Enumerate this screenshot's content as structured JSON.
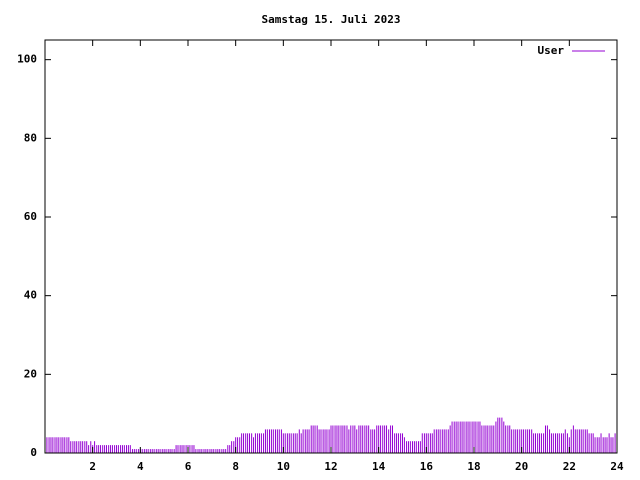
{
  "chart_data": {
    "type": "impulse",
    "title": "Samstag 15. Juli 2023",
    "xlim": [
      0,
      24
    ],
    "xticks": [
      2,
      4,
      6,
      8,
      10,
      12,
      14,
      16,
      18,
      20,
      22,
      24
    ],
    "ylim": [
      0,
      105
    ],
    "yticks": [
      0,
      20,
      40,
      60,
      80,
      100
    ],
    "legend": "top-right",
    "x": [
      0,
      0.08,
      0.17,
      0.25,
      0.33,
      0.42,
      0.5,
      0.58,
      0.67,
      0.75,
      0.83,
      0.92,
      1,
      1.08,
      1.17,
      1.25,
      1.33,
      1.42,
      1.5,
      1.58,
      1.67,
      1.75,
      1.83,
      1.92,
      2,
      2.08,
      2.17,
      2.25,
      2.33,
      2.42,
      2.5,
      2.58,
      2.67,
      2.75,
      2.83,
      2.92,
      3,
      3.08,
      3.17,
      3.25,
      3.33,
      3.42,
      3.5,
      3.58,
      3.67,
      3.75,
      3.83,
      3.92,
      4,
      4.08,
      4.17,
      4.25,
      4.33,
      4.42,
      4.5,
      4.58,
      4.67,
      4.75,
      4.83,
      4.92,
      5,
      5.08,
      5.17,
      5.25,
      5.33,
      5.42,
      5.5,
      5.58,
      5.67,
      5.75,
      5.83,
      5.92,
      6,
      6.08,
      6.17,
      6.25,
      6.33,
      6.42,
      6.5,
      6.58,
      6.67,
      6.75,
      6.83,
      6.92,
      7,
      7.08,
      7.17,
      7.25,
      7.33,
      7.42,
      7.5,
      7.58,
      7.67,
      7.75,
      7.83,
      7.92,
      8,
      8.08,
      8.17,
      8.25,
      8.33,
      8.42,
      8.5,
      8.58,
      8.67,
      8.75,
      8.83,
      8.92,
      9,
      9.08,
      9.17,
      9.25,
      9.33,
      9.42,
      9.5,
      9.58,
      9.67,
      9.75,
      9.83,
      9.92,
      10,
      10.08,
      10.17,
      10.25,
      10.33,
      10.42,
      10.5,
      10.58,
      10.67,
      10.75,
      10.83,
      10.92,
      11,
      11.08,
      11.17,
      11.25,
      11.33,
      11.42,
      11.5,
      11.58,
      11.67,
      11.75,
      11.83,
      11.92,
      12,
      12.08,
      12.17,
      12.25,
      12.33,
      12.42,
      12.5,
      12.58,
      12.67,
      12.75,
      12.83,
      12.92,
      13,
      13.08,
      13.17,
      13.25,
      13.33,
      13.42,
      13.5,
      13.58,
      13.67,
      13.75,
      13.83,
      13.92,
      14,
      14.08,
      14.17,
      14.25,
      14.33,
      14.42,
      14.5,
      14.58,
      14.67,
      14.75,
      14.83,
      14.92,
      15,
      15.08,
      15.17,
      15.25,
      15.33,
      15.42,
      15.5,
      15.58,
      15.67,
      15.75,
      15.83,
      15.92,
      16,
      16.08,
      16.17,
      16.25,
      16.33,
      16.42,
      16.5,
      16.58,
      16.67,
      16.75,
      16.83,
      16.92,
      17,
      17.08,
      17.17,
      17.25,
      17.33,
      17.42,
      17.5,
      17.58,
      17.67,
      17.75,
      17.83,
      17.92,
      18,
      18.08,
      18.17,
      18.25,
      18.33,
      18.42,
      18.5,
      18.58,
      18.67,
      18.75,
      18.83,
      18.92,
      19,
      19.08,
      19.17,
      19.25,
      19.33,
      19.42,
      19.5,
      19.58,
      19.67,
      19.75,
      19.83,
      19.92,
      20,
      20.08,
      20.17,
      20.25,
      20.33,
      20.42,
      20.5,
      20.58,
      20.67,
      20.75,
      20.83,
      20.92,
      21,
      21.08,
      21.17,
      21.25,
      21.33,
      21.42,
      21.5,
      21.58,
      21.67,
      21.75,
      21.83,
      21.92,
      22,
      22.08,
      22.17,
      22.25,
      22.33,
      22.42,
      22.5,
      22.58,
      22.67,
      22.75,
      22.83,
      22.92,
      23,
      23.08,
      23.17,
      23.25,
      23.33,
      23.42,
      23.5,
      23.58,
      23.67,
      23.75,
      23.83,
      23.92
    ],
    "series": [
      {
        "name": "User",
        "color": "#9400d3",
        "values": [
          3,
          4,
          4,
          4,
          4,
          4,
          4,
          4,
          4,
          4,
          4,
          4,
          4,
          3,
          3,
          3,
          3,
          3,
          3,
          3,
          3,
          3,
          2,
          3,
          2,
          3,
          2,
          2,
          2,
          2,
          2,
          2,
          2,
          2,
          2,
          2,
          2,
          2,
          2,
          2,
          2,
          2,
          2,
          2,
          1,
          1,
          1,
          1,
          1,
          1,
          1,
          1,
          1,
          1,
          1,
          1,
          1,
          1,
          1,
          1,
          1,
          1,
          1,
          1,
          1,
          1,
          2,
          2,
          2,
          2,
          2,
          2,
          2,
          2,
          2,
          2,
          1,
          1,
          1,
          1,
          1,
          1,
          1,
          1,
          1,
          1,
          1,
          1,
          1,
          1,
          1,
          1,
          2,
          2,
          3,
          3,
          4,
          4,
          4,
          5,
          5,
          5,
          5,
          5,
          5,
          4,
          5,
          5,
          5,
          5,
          5,
          6,
          6,
          6,
          6,
          6,
          6,
          6,
          6,
          6,
          5,
          5,
          5,
          5,
          5,
          5,
          5,
          5,
          6,
          5,
          6,
          6,
          6,
          6,
          7,
          7,
          7,
          7,
          6,
          6,
          6,
          6,
          6,
          6,
          7,
          7,
          7,
          7,
          7,
          7,
          7,
          7,
          7,
          6,
          7,
          7,
          7,
          6,
          7,
          7,
          7,
          7,
          7,
          7,
          6,
          6,
          6,
          7,
          7,
          7,
          7,
          7,
          7,
          6,
          7,
          7,
          5,
          5,
          5,
          5,
          5,
          4,
          3,
          3,
          3,
          3,
          3,
          3,
          3,
          3,
          5,
          5,
          5,
          5,
          5,
          5,
          6,
          6,
          6,
          6,
          6,
          6,
          6,
          6,
          7,
          8,
          8,
          8,
          8,
          8,
          8,
          8,
          8,
          8,
          8,
          8,
          8,
          8,
          8,
          8,
          7,
          7,
          7,
          7,
          7,
          7,
          7,
          8,
          9,
          9,
          9,
          8,
          7,
          7,
          7,
          6,
          6,
          6,
          6,
          6,
          6,
          6,
          6,
          6,
          6,
          6,
          5,
          5,
          5,
          5,
          5,
          5,
          7,
          7,
          6,
          5,
          5,
          5,
          5,
          5,
          5,
          5,
          6,
          5,
          4,
          6,
          7,
          6,
          6,
          6,
          6,
          6,
          6,
          6,
          5,
          5,
          5,
          4,
          4,
          4,
          5,
          4,
          4,
          4,
          5,
          4,
          4,
          5
        ]
      }
    ]
  }
}
